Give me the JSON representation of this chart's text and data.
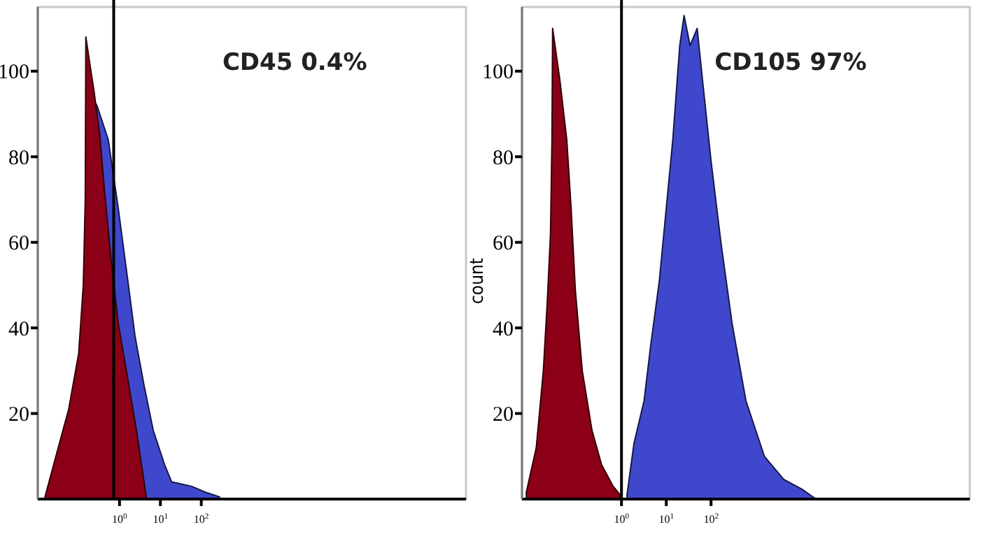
{
  "chart_data": [
    {
      "type": "area",
      "log": "x",
      "xlim": [
        0.01,
        300000000
      ],
      "xticks": [
        {
          "value": 1,
          "label": "10$^{0}$"
        },
        {
          "value": 10,
          "label": "10$^{1}$"
        },
        {
          "value": 100,
          "label": "10$^{2}$"
        }
      ],
      "ylim": [
        0,
        115
      ],
      "yticks": [
        20,
        40,
        60,
        80,
        100
      ],
      "grid": false,
      "annotations": [
        "CD45 0.4%"
      ],
      "ref_lines": [
        {
          "axis": "x",
          "value": 0.72,
          "color": "#000000"
        }
      ],
      "series": [
        {
          "color": "#3f48cc",
          "x": [
            0.24,
            0.28,
            0.53,
            0.93,
            1.6,
            2.4,
            3.9,
            6.7,
            12.7,
            18.9,
            57,
            127,
            280
          ],
          "values": [
            93,
            92,
            84,
            68,
            51,
            38,
            27,
            16,
            8,
            4,
            3,
            1.6,
            0.5
          ]
        },
        {
          "color": "#8b0016",
          "x": [
            0.015,
            0.026,
            0.057,
            0.1,
            0.13,
            0.145,
            0.15,
            0.2,
            0.24,
            0.33,
            0.42,
            0.62,
            0.93,
            1.6,
            2.6,
            4.5
          ],
          "values": [
            0.5,
            9,
            21,
            34,
            50,
            70,
            108,
            100,
            95,
            85,
            73,
            56,
            41,
            28,
            16,
            0.5
          ]
        }
      ]
    },
    {
      "type": "area",
      "log": "x",
      "xlim": [
        0.006,
        60000000
      ],
      "xticks": [
        {
          "value": 1,
          "label": "10$^{0}$"
        },
        {
          "value": 10,
          "label": "10$^{1}$"
        },
        {
          "value": 100,
          "label": "10$^{2}$"
        }
      ],
      "ylim": [
        0,
        115
      ],
      "yticks": [
        20,
        40,
        60,
        80,
        100
      ],
      "ylabel": "count",
      "grid": false,
      "annotations": [
        "CD105 97%"
      ],
      "ref_lines": [
        {
          "axis": "x",
          "value": 1,
          "color": "#000000"
        }
      ],
      "series": [
        {
          "color": "#3f48cc",
          "x": [
            1.33,
            1.9,
            3.2,
            4.5,
            7,
            10,
            14,
            20,
            25,
            34,
            49,
            60,
            100,
            166,
            295,
            600,
            1550,
            4200,
            10700,
            22000
          ],
          "values": [
            1,
            13,
            23,
            36,
            51,
            68,
            84,
            106,
            113,
            106,
            110,
            101,
            79,
            60,
            41,
            23,
            10,
            4.6,
            2.3,
            0
          ]
        },
        {
          "color": "#8b0016",
          "x": [
            0.0075,
            0.0125,
            0.018,
            0.022,
            0.026,
            0.028,
            0.029,
            0.042,
            0.06,
            0.075,
            0.093,
            0.133,
            0.22,
            0.36,
            0.65,
            0.93
          ],
          "values": [
            1.6,
            12,
            30,
            46,
            62,
            84,
            110,
            98,
            84,
            68,
            49,
            30,
            16,
            8,
            3,
            1
          ]
        }
      ]
    }
  ]
}
